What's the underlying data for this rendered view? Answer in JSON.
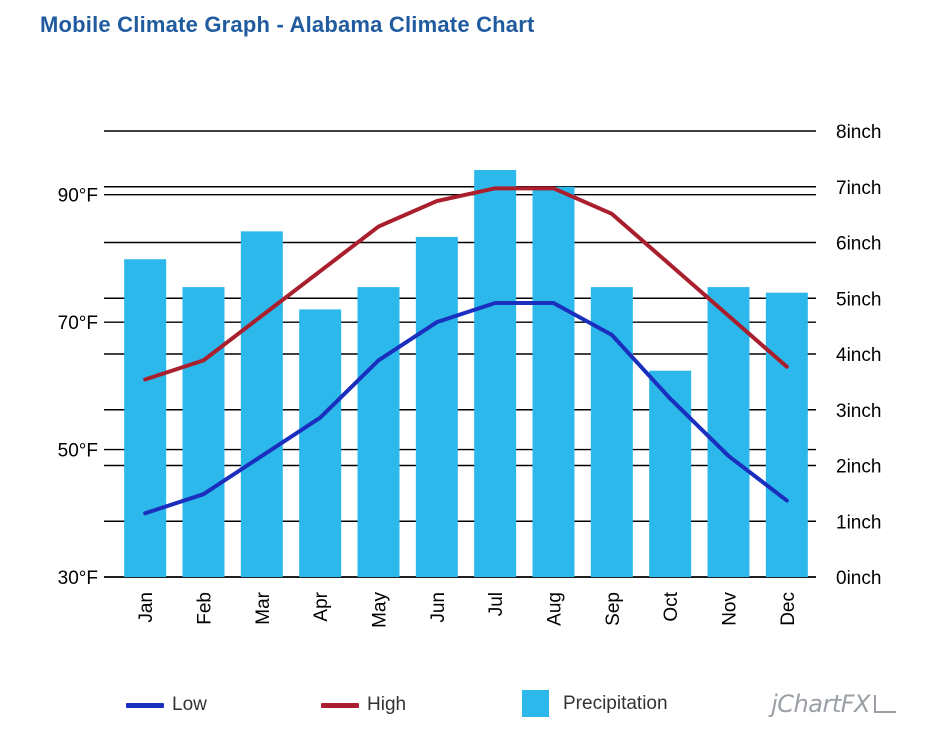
{
  "title": "Mobile Climate Graph - Alabama Climate Chart",
  "brand": "jChartFX",
  "chart_data": {
    "type": "bar",
    "categories": [
      "Jan",
      "Feb",
      "Mar",
      "Apr",
      "May",
      "Jun",
      "Jul",
      "Aug",
      "Sep",
      "Oct",
      "Nov",
      "Dec"
    ],
    "series": [
      {
        "name": "Precipitation",
        "type": "bar",
        "axis": "right",
        "color": "#2db8ec",
        "values": [
          5.7,
          5.2,
          6.2,
          4.8,
          5.2,
          6.1,
          7.3,
          7.0,
          5.2,
          3.7,
          5.2,
          5.1
        ]
      },
      {
        "name": "Low",
        "type": "line",
        "axis": "left",
        "color": "#1a2fbd",
        "values": [
          40,
          43,
          49,
          55,
          64,
          70,
          73,
          73,
          68,
          58,
          49,
          42
        ]
      },
      {
        "name": "High",
        "type": "line",
        "axis": "left",
        "color": "#aa1f2e",
        "values": [
          61,
          64,
          71,
          78,
          85,
          89,
          91,
          91,
          87,
          79,
          71,
          63
        ]
      }
    ],
    "left_axis": {
      "min": 30,
      "max": 100,
      "tick_labels": [
        "30°F",
        "50°F",
        "70°F",
        "90°F"
      ],
      "tick_values": [
        30,
        50,
        70,
        90
      ]
    },
    "right_axis": {
      "min": 0,
      "max": 8,
      "tick_labels": [
        "0inch",
        "1inch",
        "2inch",
        "3inch",
        "4inch",
        "5inch",
        "6inch",
        "7inch",
        "8inch"
      ],
      "tick_values": [
        0,
        1,
        2,
        3,
        4,
        5,
        6,
        7,
        8
      ]
    },
    "grid": true,
    "legend": "bottom",
    "legend_entries": [
      "Low",
      "High",
      "Precipitation"
    ]
  }
}
